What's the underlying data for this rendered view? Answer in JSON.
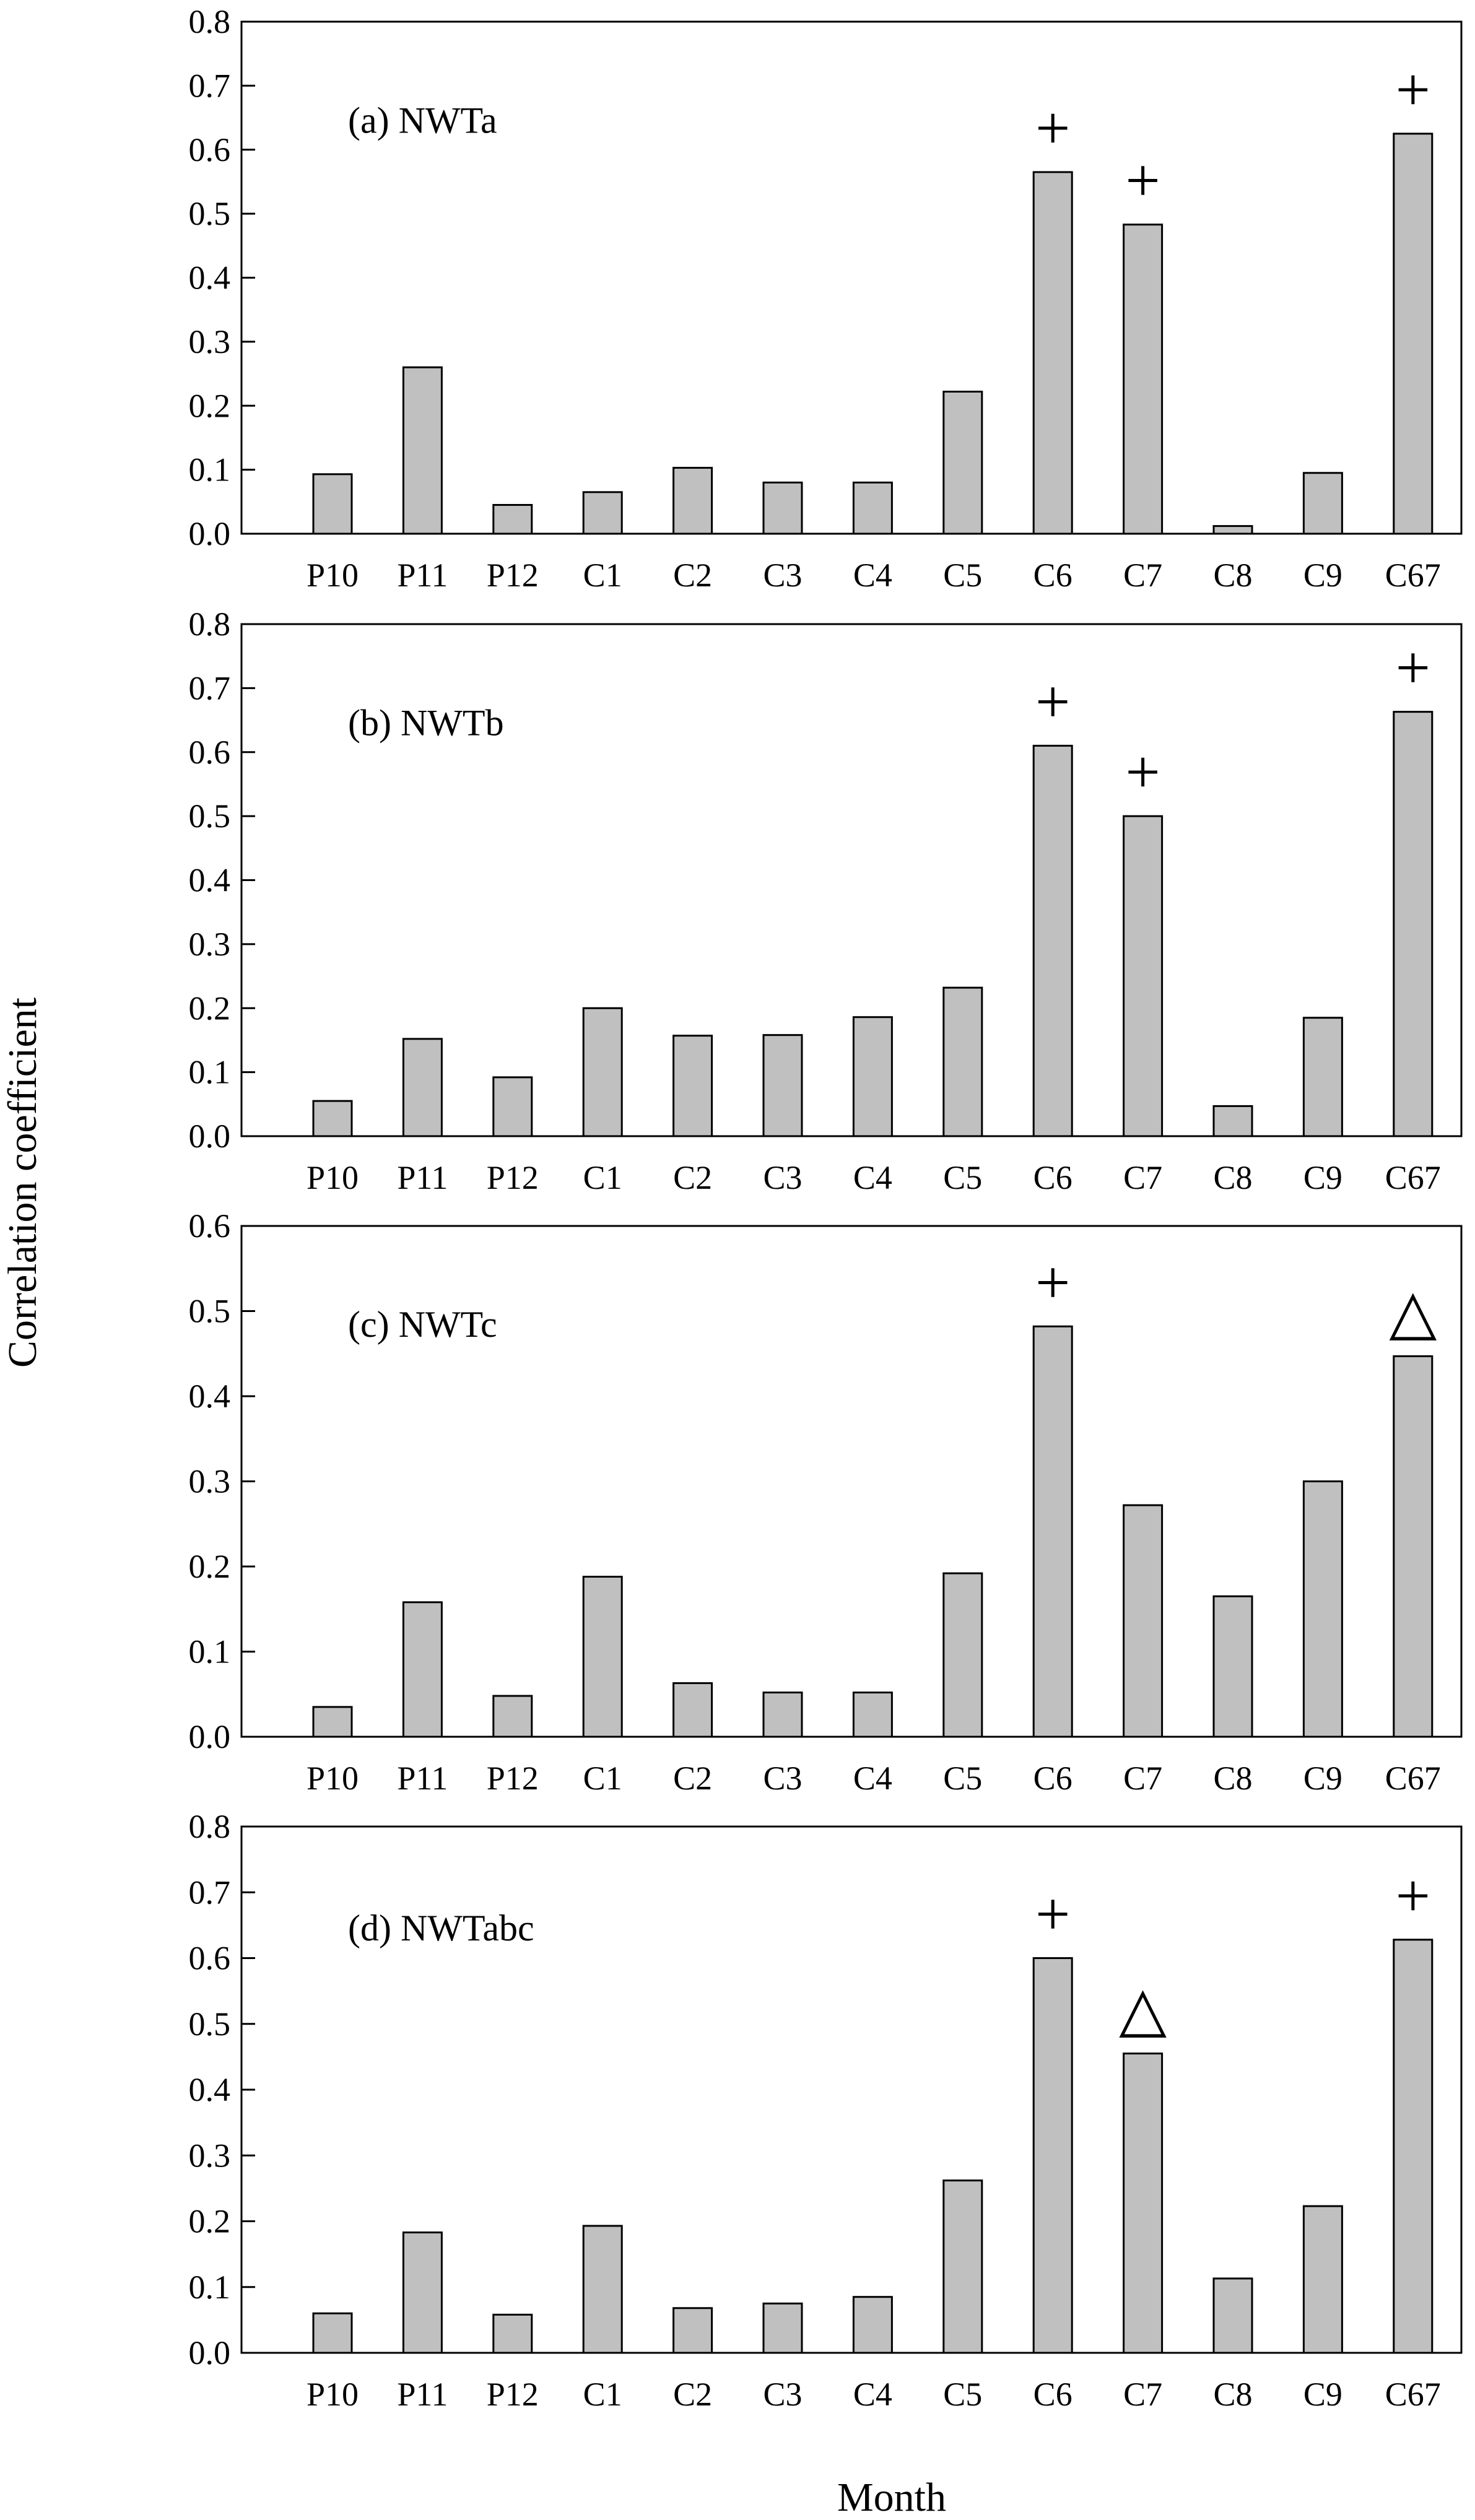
{
  "figure": {
    "ylabel": "Correlation coefficient",
    "xlabel": "Month"
  },
  "styles": {
    "bar_fill": "#c0c0c0",
    "bar_stroke": "#000000",
    "axis_color": "#000000"
  },
  "chart_data": [
    {
      "type": "bar",
      "title": "(a) NWTa",
      "categories": [
        "P10",
        "P11",
        "P12",
        "C1",
        "C2",
        "C3",
        "C4",
        "C5",
        "C6",
        "C7",
        "C8",
        "C9",
        "C67"
      ],
      "values": [
        0.093,
        0.26,
        0.045,
        0.065,
        0.103,
        0.08,
        0.08,
        0.222,
        0.565,
        0.483,
        0.012,
        0.095,
        0.625
      ],
      "ylim": [
        0,
        0.8
      ],
      "yticks": [
        "0.0",
        "0.1",
        "0.2",
        "0.3",
        "0.4",
        "0.5",
        "0.6",
        "0.7",
        "0.8"
      ],
      "markers": [
        "",
        "",
        "",
        "",
        "",
        "",
        "",
        "",
        "+",
        "+",
        "",
        "",
        "+"
      ]
    },
    {
      "type": "bar",
      "title": "(b) NWTb",
      "categories": [
        "P10",
        "P11",
        "P12",
        "C1",
        "C2",
        "C3",
        "C4",
        "C5",
        "C6",
        "C7",
        "C8",
        "C9",
        "C67"
      ],
      "values": [
        0.055,
        0.152,
        0.092,
        0.2,
        0.157,
        0.158,
        0.186,
        0.232,
        0.61,
        0.5,
        0.047,
        0.185,
        0.663
      ],
      "ylim": [
        0,
        0.8
      ],
      "yticks": [
        "0.0",
        "0.1",
        "0.2",
        "0.3",
        "0.4",
        "0.5",
        "0.6",
        "0.7",
        "0.8"
      ],
      "markers": [
        "",
        "",
        "",
        "",
        "",
        "",
        "",
        "",
        "+",
        "+",
        "",
        "",
        "+"
      ]
    },
    {
      "type": "bar",
      "title": "(c) NWTc",
      "categories": [
        "P10",
        "P11",
        "P12",
        "C1",
        "C2",
        "C3",
        "C4",
        "C5",
        "C6",
        "C7",
        "C8",
        "C9",
        "C67"
      ],
      "values": [
        0.035,
        0.158,
        0.048,
        0.188,
        0.063,
        0.052,
        0.052,
        0.192,
        0.482,
        0.272,
        0.165,
        0.3,
        0.447
      ],
      "ylim": [
        0,
        0.6
      ],
      "yticks": [
        "0.0",
        "0.1",
        "0.2",
        "0.3",
        "0.4",
        "0.5",
        "0.6"
      ],
      "markers": [
        "",
        "",
        "",
        "",
        "",
        "",
        "",
        "",
        "+",
        "",
        "",
        "",
        "△"
      ]
    },
    {
      "type": "bar",
      "title": "(d) NWTabc",
      "categories": [
        "P10",
        "P11",
        "P12",
        "C1",
        "C2",
        "C3",
        "C4",
        "C5",
        "C6",
        "C7",
        "C8",
        "C9",
        "C67"
      ],
      "values": [
        0.06,
        0.183,
        0.058,
        0.193,
        0.068,
        0.075,
        0.085,
        0.262,
        0.6,
        0.455,
        0.113,
        0.223,
        0.628
      ],
      "ylim": [
        0,
        0.8
      ],
      "yticks": [
        "0.0",
        "0.1",
        "0.2",
        "0.3",
        "0.4",
        "0.5",
        "0.6",
        "0.7",
        "0.8"
      ],
      "markers": [
        "",
        "",
        "",
        "",
        "",
        "",
        "",
        "",
        "+",
        "△",
        "",
        "",
        "+"
      ]
    }
  ]
}
